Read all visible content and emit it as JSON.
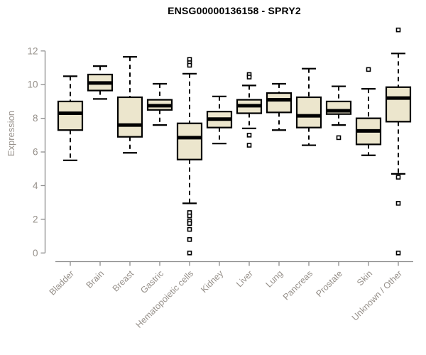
{
  "page": {
    "background": "#ffffff"
  },
  "chart_data": {
    "type": "boxplot",
    "title": "ENSG00000136158 - SPRY2",
    "xlabel": "",
    "ylabel": "Expression",
    "ylim": [
      0,
      13.5
    ],
    "yticks": [
      0,
      2,
      4,
      6,
      8,
      10,
      12
    ],
    "grid": "off",
    "legend": "none",
    "categories": [
      "Bladder",
      "Brain",
      "Breast",
      "Gastric",
      "Hematopoietic cells",
      "Kidney",
      "Liver",
      "Lung",
      "Pancreas",
      "Prostate",
      "Skin",
      "Unknown / Other"
    ],
    "series": [
      {
        "category": "Bladder",
        "whisker_low": 5.5,
        "q1": 7.3,
        "median": 8.3,
        "q3": 9.0,
        "whisker_high": 10.5,
        "outliers": []
      },
      {
        "category": "Brain",
        "whisker_low": 9.15,
        "q1": 9.65,
        "median": 10.1,
        "q3": 10.6,
        "whisker_high": 11.1,
        "outliers": []
      },
      {
        "category": "Breast",
        "whisker_low": 5.95,
        "q1": 6.9,
        "median": 7.6,
        "q3": 9.25,
        "whisker_high": 11.65,
        "outliers": []
      },
      {
        "category": "Gastric",
        "whisker_low": 7.6,
        "q1": 8.5,
        "median": 8.75,
        "q3": 9.1,
        "whisker_high": 10.05,
        "outliers": []
      },
      {
        "category": "Hematopoietic cells",
        "whisker_low": 2.95,
        "q1": 5.55,
        "median": 6.85,
        "q3": 7.7,
        "whisker_high": 10.65,
        "outliers": [
          11.5,
          11.3,
          11.15,
          2.4,
          2.2,
          1.9,
          1.75,
          1.4,
          0.8,
          0.0
        ]
      },
      {
        "category": "Kidney",
        "whisker_low": 6.5,
        "q1": 7.45,
        "median": 7.95,
        "q3": 8.4,
        "whisker_high": 9.3,
        "outliers": []
      },
      {
        "category": "Liver",
        "whisker_low": 7.4,
        "q1": 8.3,
        "median": 8.75,
        "q3": 9.1,
        "whisker_high": 9.95,
        "outliers": [
          10.6,
          10.45,
          7.0,
          6.4
        ]
      },
      {
        "category": "Lung",
        "whisker_low": 7.3,
        "q1": 8.35,
        "median": 9.1,
        "q3": 9.5,
        "whisker_high": 10.05,
        "outliers": []
      },
      {
        "category": "Pancreas",
        "whisker_low": 6.4,
        "q1": 7.45,
        "median": 8.15,
        "q3": 9.25,
        "whisker_high": 10.95,
        "outliers": []
      },
      {
        "category": "Prostate",
        "whisker_low": 7.6,
        "q1": 8.25,
        "median": 8.45,
        "q3": 9.0,
        "whisker_high": 9.9,
        "outliers": [
          6.85
        ]
      },
      {
        "category": "Skin",
        "whisker_low": 5.8,
        "q1": 6.45,
        "median": 7.25,
        "q3": 8.0,
        "whisker_high": 9.75,
        "outliers": [
          10.9
        ]
      },
      {
        "category": "Unknown / Other",
        "whisker_low": 4.7,
        "q1": 7.8,
        "median": 9.2,
        "q3": 9.85,
        "whisker_high": 11.85,
        "outliers": [
          13.25,
          4.5,
          2.95,
          0.0
        ]
      }
    ],
    "colors": {
      "box_fill": "#ece6cd",
      "box_stroke": "#000000",
      "median": "#000000",
      "whisker": "#000000",
      "outlier_stroke": "#000000",
      "outlier_fill": "#ffffff",
      "axis_line": "#8c8c8c",
      "tick_label": "#96908a",
      "title": "#000000"
    }
  }
}
